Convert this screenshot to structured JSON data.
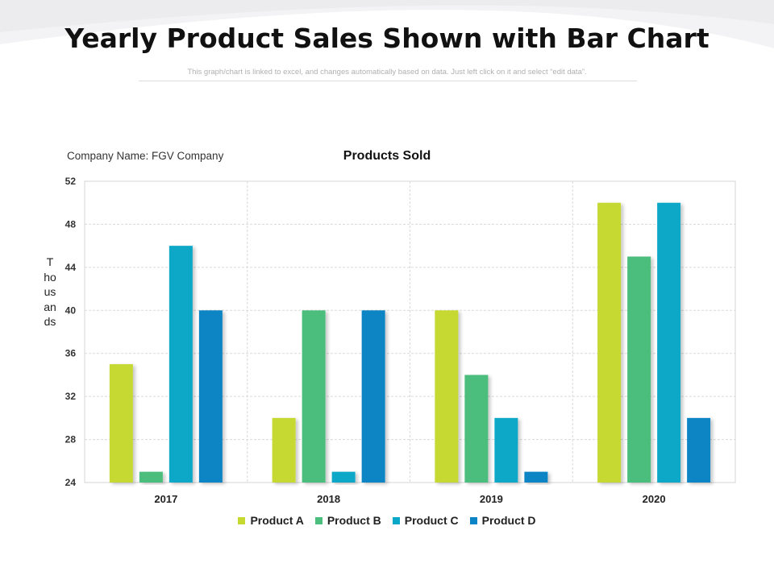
{
  "slide": {
    "title": "Yearly Product Sales Shown with Bar Chart",
    "subtitle": "This graph/chart is linked to excel, and changes automatically based on data. Just left click on it and select “edit data”.",
    "company": "Company Name: FGV Company"
  },
  "chart_data": {
    "type": "bar",
    "title": "Products Sold",
    "ylabel": "Thousands",
    "xlabel": "",
    "categories": [
      "2017",
      "2018",
      "2019",
      "2020"
    ],
    "ylim": [
      24,
      52
    ],
    "yticks": [
      24,
      28,
      32,
      36,
      40,
      44,
      48,
      52
    ],
    "grid": true,
    "legend": "bottom",
    "series": [
      {
        "name": "Product A",
        "color": "#c5d931",
        "values": [
          35,
          30,
          40,
          50
        ]
      },
      {
        "name": "Product B",
        "color": "#4cbe7e",
        "values": [
          25,
          40,
          34,
          45
        ]
      },
      {
        "name": "Product C",
        "color": "#0aa8c8",
        "values": [
          46,
          25,
          30,
          50
        ]
      },
      {
        "name": "Product D",
        "color": "#0a84c4",
        "values": [
          40,
          40,
          25,
          30
        ]
      }
    ]
  }
}
